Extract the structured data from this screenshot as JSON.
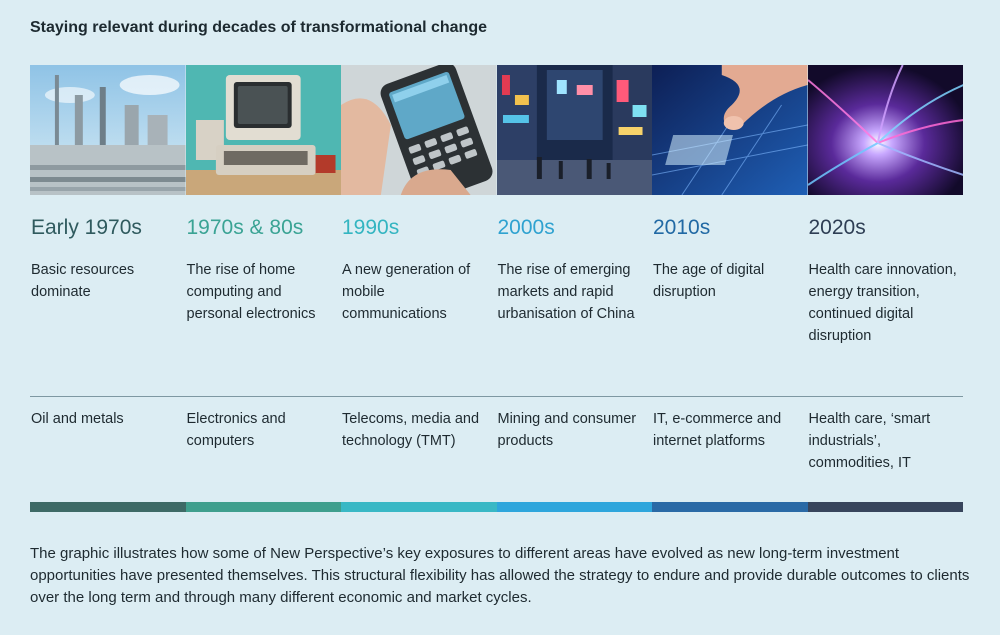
{
  "title": "Staying relevant during decades of transformational change",
  "columns": [
    {
      "era": "Early 1970s",
      "era_color": "#2f5a5e",
      "description": "Basic resources dominate",
      "sectors": "Oil and metals",
      "bar_color": "#3e6a66",
      "image_icon": "refinery-image"
    },
    {
      "era": "1970s & 80s",
      "era_color": "#3aa394",
      "description": "The rise of home computing and personal electronics",
      "sectors": "Electronics and computers",
      "bar_color": "#3f9f8d",
      "image_icon": "vintage-computer-image"
    },
    {
      "era": "1990s",
      "era_color": "#34b5c1",
      "description": "A new generation of mobile communications",
      "sectors": "Telecoms, media and technology (TMT)",
      "bar_color": "#39b8c5",
      "image_icon": "mobile-phone-image"
    },
    {
      "era": "2000s",
      "era_color": "#2fa2d0",
      "description": "The rise of emerging markets and rapid urbanisation of China",
      "sectors": "Mining and consumer products",
      "bar_color": "#2ea6dc",
      "image_icon": "city-street-image"
    },
    {
      "era": "2010s",
      "era_color": "#2169a4",
      "description": "The age of digital disruption",
      "sectors": "IT, e-commerce and internet platforms",
      "bar_color": "#2a6aa6",
      "image_icon": "touchscreen-image"
    },
    {
      "era": "2020s",
      "era_color": "#2e3e54",
      "description": "Health care innovation, energy transition, continued digital disruption",
      "sectors": "Health care, ‘smart industrials’, commodities, IT",
      "bar_color": "#38455c",
      "image_icon": "light-streak-image"
    }
  ],
  "footer": "The graphic illustrates how some of New Perspective’s key exposures to different areas have evolved as new long-term investment opportunities have presented themselves. This structural flexibility has allowed the strategy to endure and provide durable outcomes to clients over the long term and through many different economic and market cycles."
}
